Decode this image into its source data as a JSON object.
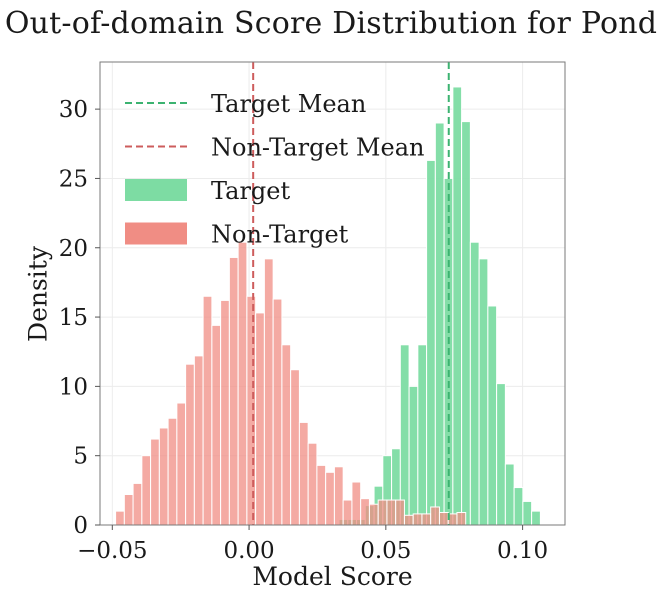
{
  "chart_data": {
    "type": "bar",
    "title": "Out-of-domain Score Distribution for Pond",
    "xlabel": "Model Score",
    "ylabel": "Density",
    "xlim": [
      -0.0545,
      0.1155
    ],
    "ylim": [
      0,
      33.4
    ],
    "xticks": [
      -0.05,
      0.0,
      0.05,
      0.1
    ],
    "xtick_labels": [
      "−0.05",
      "0.00",
      "0.05",
      "0.10"
    ],
    "yticks": [
      0,
      5,
      10,
      15,
      20,
      25,
      30
    ],
    "ytick_labels": [
      "0",
      "5",
      "10",
      "15",
      "20",
      "25",
      "30"
    ],
    "grid": true,
    "legend_position": "top-left",
    "legend": [
      {
        "label": "Target Mean",
        "kind": "dashed-line",
        "color": "#3cb371"
      },
      {
        "label": "Non-Target Mean",
        "kind": "dashed-line",
        "color": "#cd5c5c"
      },
      {
        "label": "Target",
        "kind": "patch",
        "color": "#7ddca3"
      },
      {
        "label": "Non-Target",
        "kind": "patch",
        "color": "#f08d84"
      }
    ],
    "mean_lines": [
      {
        "series": "Target Mean",
        "x": 0.073,
        "color": "#3cb371"
      },
      {
        "series": "Non-Target Mean",
        "x": 0.0015,
        "color": "#cd5c5c"
      }
    ],
    "series": [
      {
        "name": "Target",
        "color": "#7ddca3",
        "bin_width": 0.0032,
        "x": [
          0.0345,
          0.0377,
          0.0409,
          0.0441,
          0.0473,
          0.0505,
          0.0537,
          0.0569,
          0.0601,
          0.0633,
          0.0665,
          0.0697,
          0.0729,
          0.0761,
          0.0793,
          0.0825,
          0.0857,
          0.0889,
          0.0921,
          0.0953,
          0.0985,
          0.1017,
          0.1049
        ],
        "values": [
          0.4,
          0.4,
          0.4,
          1.4,
          2.8,
          5.0,
          5.5,
          13.0,
          10.0,
          13.0,
          26.3,
          29.0,
          25.0,
          31.6,
          29.1,
          20.4,
          19.2,
          15.8,
          10.2,
          4.4,
          2.7,
          1.7,
          1.0
        ]
      },
      {
        "name": "Non-Target",
        "color": "#f08d84",
        "bin_width": 0.0032,
        "x": [
          -0.0472,
          -0.044,
          -0.0408,
          -0.0376,
          -0.0344,
          -0.0312,
          -0.028,
          -0.0248,
          -0.0216,
          -0.0184,
          -0.0152,
          -0.012,
          -0.0088,
          -0.0056,
          -0.0024,
          0.0008,
          0.004,
          0.0072,
          0.0104,
          0.0136,
          0.0168,
          0.02,
          0.0232,
          0.0264,
          0.0296,
          0.0328,
          0.036,
          0.0392,
          0.0424,
          0.0456,
          0.0488,
          0.052,
          0.0552,
          0.0584,
          0.0616,
          0.0648,
          0.068,
          0.0712,
          0.0744,
          0.0776
        ],
        "values": [
          1.0,
          2.2,
          3.0,
          5.0,
          6.2,
          7.0,
          7.7,
          8.8,
          11.6,
          12.2,
          16.5,
          14.4,
          16.2,
          19.3,
          20.4,
          16.5,
          15.3,
          19.2,
          16.3,
          13.0,
          11.2,
          7.4,
          5.9,
          4.3,
          3.8,
          4.2,
          1.8,
          3.1,
          1.9,
          1.5,
          1.8,
          1.8,
          1.8,
          0.7,
          0.8,
          0.8,
          1.3,
          0.9,
          0.8,
          0.9
        ]
      }
    ]
  }
}
